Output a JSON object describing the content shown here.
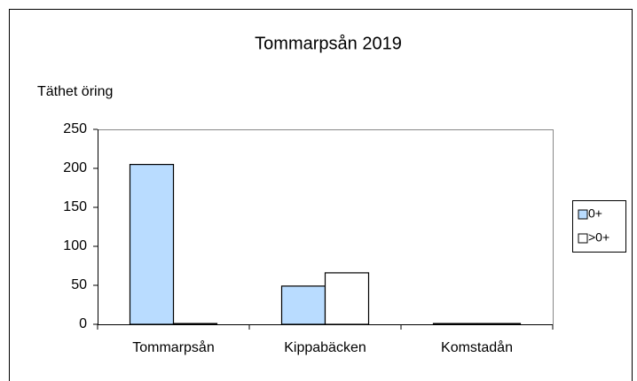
{
  "chart_data": {
    "type": "bar",
    "title": "Tommarpsån 2019",
    "y_label": "Täthet öring",
    "categories": [
      "Tommarpsån",
      "Kippabäcken",
      "Komstadån"
    ],
    "series": [
      {
        "name": "0+",
        "color": "#b9dcff",
        "values": [
          205,
          49,
          1
        ]
      },
      {
        "name": ">0+",
        "color": "#ffffff",
        "values": [
          1,
          66,
          1
        ]
      }
    ],
    "ylim": [
      0,
      250
    ],
    "yticks": [
      0,
      50,
      100,
      150,
      200,
      250
    ],
    "grid": false,
    "legend": "right"
  }
}
